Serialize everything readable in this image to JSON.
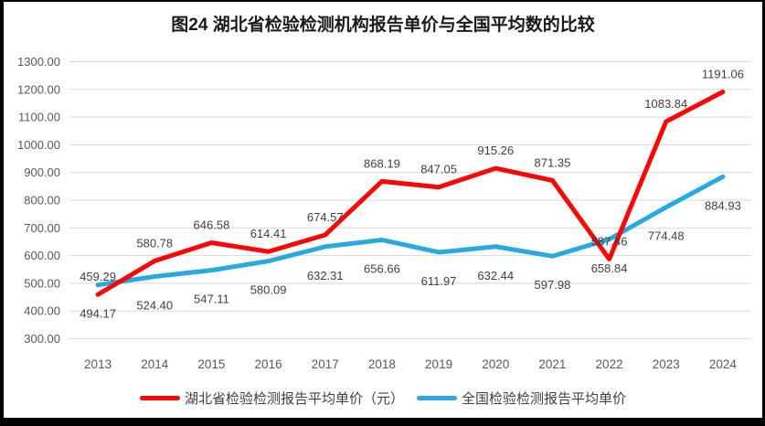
{
  "title": "图24 湖北省检验检测机构报告单价与全国平均数的比较",
  "colors": {
    "hubei_red": "#FB0505",
    "national_blue": "#29A9E0",
    "gridline": "#D9D9D9",
    "axis_text": "#595959",
    "data_label_text": "#3F3F3F",
    "frame_border": "#000000"
  },
  "chart_data": {
    "type": "line",
    "title": "图24 湖北省检验检测机构报告单价与全国平均数的比较",
    "categories": [
      "2013",
      "2014",
      "2015",
      "2016",
      "2017",
      "2018",
      "2019",
      "2020",
      "2021",
      "2022",
      "2023",
      "2024"
    ],
    "series": [
      {
        "name": "湖北省检验检测报告平均单价（元）",
        "color": "#FB0505",
        "label_position": "above",
        "values": [
          459.29,
          580.78,
          646.58,
          614.41,
          674.57,
          868.19,
          847.05,
          915.26,
          871.35,
          587.46,
          1083.84,
          1191.06
        ]
      },
      {
        "name": "全国检验检测报告平均单价",
        "color": "#29A9E0",
        "label_position": "below",
        "values": [
          494.17,
          524.4,
          547.11,
          580.09,
          632.31,
          656.66,
          611.97,
          632.44,
          597.98,
          658.84,
          774.48,
          884.93
        ]
      }
    ],
    "xlabel": "",
    "ylabel": "",
    "ylim": [
      300,
      1300
    ],
    "ytick_step": 100,
    "ytick_format": "two_decimals",
    "grid": "horizontal-only",
    "data_labels": "on",
    "legend_position": "bottom"
  }
}
